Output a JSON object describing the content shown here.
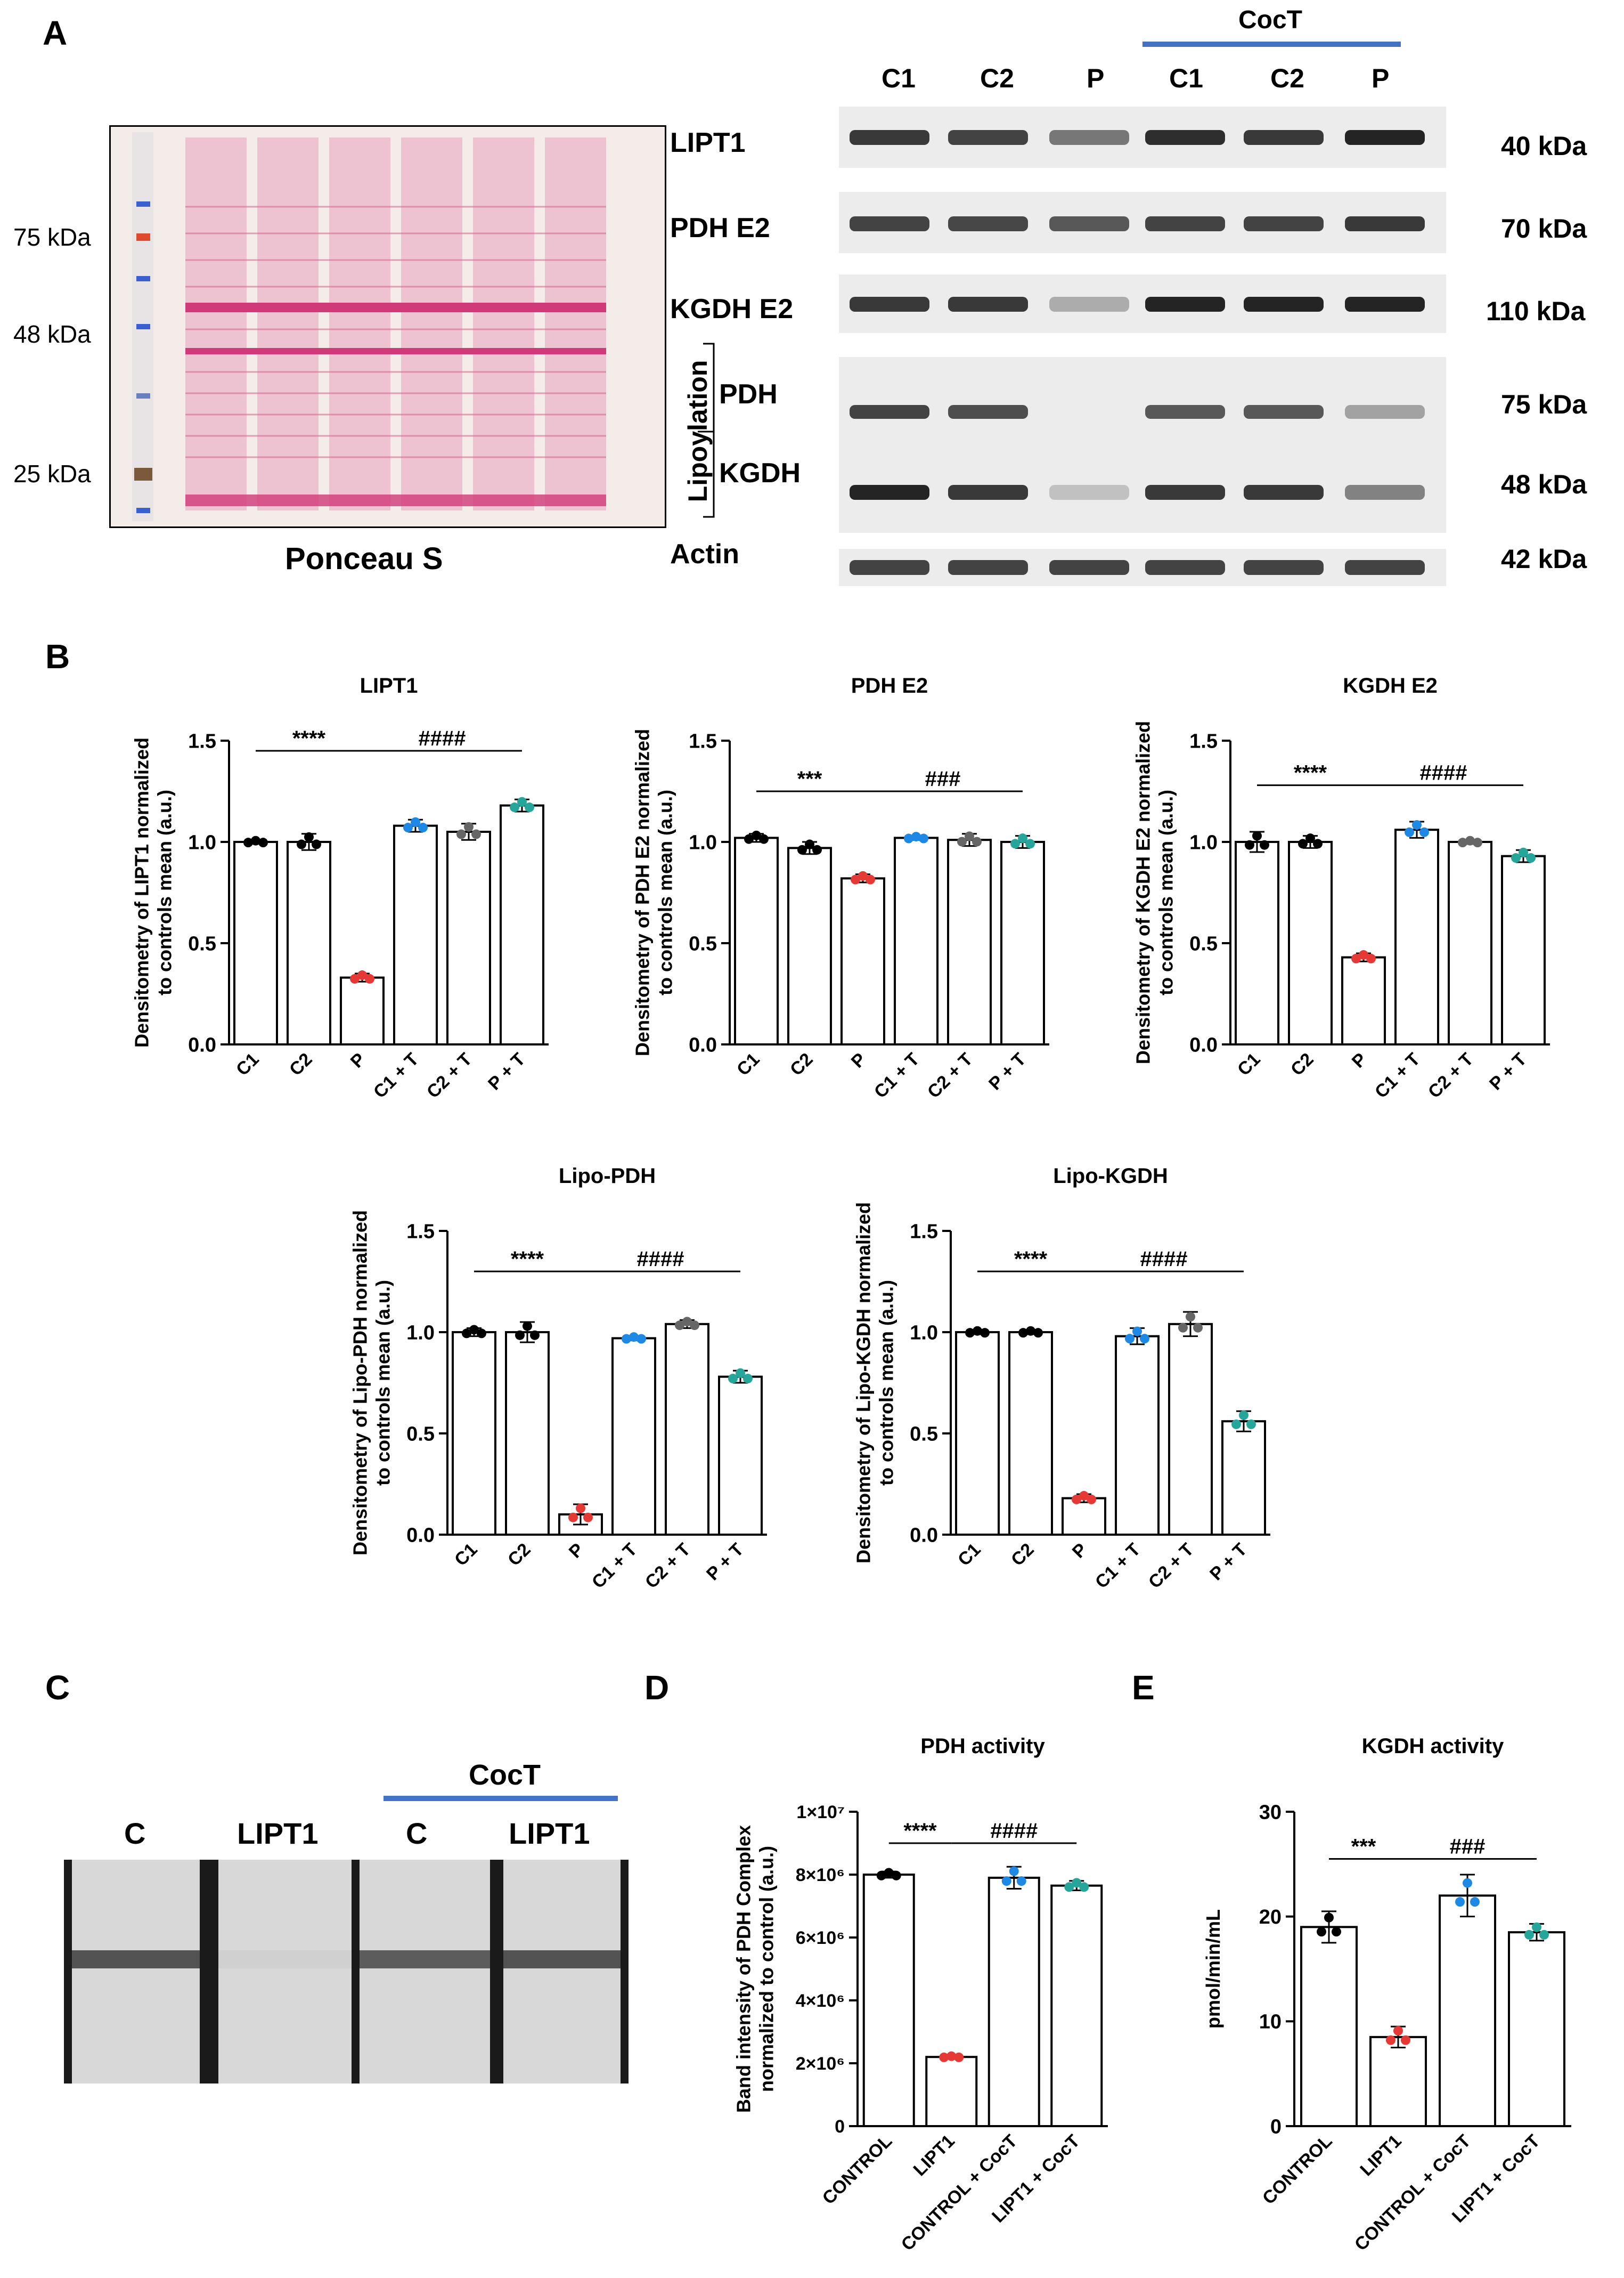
{
  "panelA": {
    "letter": "A",
    "ponceau": {
      "caption": "Ponceau S",
      "markers": [
        "75 kDa",
        "48 kDa",
        "25 kDa"
      ]
    },
    "blot": {
      "treatment_label": "CocT",
      "lanes": [
        "C1",
        "C2",
        "P",
        "C1",
        "C2",
        "P"
      ],
      "rows": [
        {
          "label": "LIPT1",
          "kda": "40 kDa",
          "intensities": [
            0.85,
            0.8,
            0.55,
            0.9,
            0.85,
            0.95
          ]
        },
        {
          "label": "PDH E2",
          "kda": "70 kDa",
          "intensities": [
            0.8,
            0.78,
            0.7,
            0.8,
            0.8,
            0.85
          ]
        },
        {
          "label": "KGDH E2",
          "kda": "110 kDa",
          "intensities": [
            0.85,
            0.85,
            0.3,
            0.95,
            0.95,
            0.95
          ]
        },
        {
          "label": "Actin",
          "kda": "42 kDa",
          "intensities": [
            0.8,
            0.8,
            0.8,
            0.8,
            0.8,
            0.8
          ]
        }
      ],
      "lipoylation": {
        "group_label": "Lipoylation",
        "sub_pdh": "PDH",
        "sub_kgdh": "KGDH",
        "kda_pdh": "75 kDa",
        "kda_kgdh": "48 kDa",
        "pdh_intensities": [
          0.8,
          0.75,
          0.0,
          0.7,
          0.7,
          0.35
        ],
        "kgdh_intensities": [
          0.95,
          0.85,
          0.2,
          0.85,
          0.85,
          0.5
        ]
      }
    }
  },
  "panelB": {
    "letter": "B"
  },
  "panelC": {
    "letter": "C",
    "treatment_label": "CocT",
    "lanes": [
      "C",
      "LIPT1",
      "C",
      "LIPT1"
    ],
    "intensities": [
      0.85,
      0.15,
      0.8,
      0.85
    ]
  },
  "panelD": {
    "letter": "D"
  },
  "panelE": {
    "letter": "E"
  },
  "chart_data": [
    {
      "type": "bar",
      "title": "LIPT1",
      "ylabel": "Densitometry of LIPT1 normalized to controls mean (a.u.)",
      "categories": [
        "C1",
        "C2",
        "P",
        "C1 + T",
        "C2 + T",
        "P + T"
      ],
      "values": [
        1.0,
        1.0,
        0.33,
        1.08,
        1.05,
        1.18
      ],
      "errors": [
        0.01,
        0.04,
        0.02,
        0.03,
        0.04,
        0.03
      ],
      "ylim": [
        0,
        1.5
      ],
      "yticks": [
        "0.0",
        "0.5",
        "1.0",
        "1.5"
      ],
      "sig": [
        {
          "text": "****",
          "from": 0,
          "to": 2,
          "y": 1.45
        },
        {
          "text": "####",
          "from": 2,
          "to": 5,
          "y": 1.45
        }
      ]
    },
    {
      "type": "bar",
      "title": "PDH E2",
      "ylabel": "Densitometry of PDH E2 normalized to controls mean (a.u.)",
      "categories": [
        "C1",
        "C2",
        "P",
        "C1 + T",
        "C2 + T",
        "P + T"
      ],
      "values": [
        1.02,
        0.97,
        0.82,
        1.02,
        1.01,
        1.0
      ],
      "errors": [
        0.02,
        0.03,
        0.02,
        0.01,
        0.03,
        0.03
      ],
      "ylim": [
        0,
        1.5
      ],
      "yticks": [
        "0.0",
        "0.5",
        "1.0",
        "1.5"
      ],
      "sig": [
        {
          "text": "***",
          "from": 0,
          "to": 2,
          "y": 1.25
        },
        {
          "text": "###",
          "from": 2,
          "to": 5,
          "y": 1.25
        }
      ]
    },
    {
      "type": "bar",
      "title": "KGDH E2",
      "ylabel": "Densitometry of KGDH E2 normalized to controls mean (a.u.)",
      "categories": [
        "C1",
        "C2",
        "P",
        "C1 + T",
        "C2 + T",
        "P + T"
      ],
      "values": [
        1.0,
        1.0,
        0.43,
        1.06,
        1.0,
        0.93
      ],
      "errors": [
        0.05,
        0.03,
        0.02,
        0.04,
        0.01,
        0.03
      ],
      "ylim": [
        0,
        1.5
      ],
      "yticks": [
        "0.0",
        "0.5",
        "1.0",
        "1.5"
      ],
      "sig": [
        {
          "text": "****",
          "from": 0,
          "to": 2,
          "y": 1.28
        },
        {
          "text": "####",
          "from": 2,
          "to": 5,
          "y": 1.28
        }
      ]
    },
    {
      "type": "bar",
      "title": "Lipo-PDH",
      "ylabel": "Densitometry of Lipo-PDH normalized to controls mean (a.u.)",
      "categories": [
        "C1",
        "C2",
        "P",
        "C1 + T",
        "C2 + T",
        "P + T"
      ],
      "values": [
        1.0,
        1.0,
        0.1,
        0.97,
        1.04,
        0.78
      ],
      "errors": [
        0.02,
        0.05,
        0.05,
        0.01,
        0.02,
        0.03
      ],
      "ylim": [
        0,
        1.5
      ],
      "yticks": [
        "0.0",
        "0.5",
        "1.0",
        "1.5"
      ],
      "sig": [
        {
          "text": "****",
          "from": 0,
          "to": 2,
          "y": 1.3
        },
        {
          "text": "####",
          "from": 2,
          "to": 5,
          "y": 1.3
        }
      ]
    },
    {
      "type": "bar",
      "title": "Lipo-KGDH",
      "ylabel": "Densitometry of Lipo-KGDH normalized to controls mean (a.u.)",
      "categories": [
        "C1",
        "C2",
        "P",
        "C1 + T",
        "C2 + T",
        "P + T"
      ],
      "values": [
        1.0,
        1.0,
        0.18,
        0.98,
        1.04,
        0.56
      ],
      "errors": [
        0.01,
        0.01,
        0.02,
        0.04,
        0.06,
        0.05
      ],
      "ylim": [
        0,
        1.5
      ],
      "yticks": [
        "0.0",
        "0.5",
        "1.0",
        "1.5"
      ],
      "sig": [
        {
          "text": "****",
          "from": 0,
          "to": 2,
          "y": 1.3
        },
        {
          "text": "####",
          "from": 2,
          "to": 5,
          "y": 1.3
        }
      ]
    },
    {
      "type": "bar",
      "title": "PDH activity",
      "ylabel": "Band intensity of PDH Complex normalized to control (a.u.)",
      "categories": [
        "CONTROL",
        "LIPT1",
        "CONTROL + CocT",
        "LIPT1 + CocT"
      ],
      "values": [
        8000000,
        2200000,
        7900000,
        7650000
      ],
      "errors": [
        100000,
        40000,
        350000,
        150000
      ],
      "ylim": [
        0,
        10000000
      ],
      "yticks": [
        "0",
        "2×10⁶",
        "4×10⁶",
        "6×10⁶",
        "8×10⁶",
        "1×10⁷"
      ],
      "sig": [
        {
          "text": "****",
          "from": 0,
          "to": 1,
          "y": 9000000
        },
        {
          "text": "####",
          "from": 1,
          "to": 3,
          "y": 9000000
        }
      ]
    },
    {
      "type": "bar",
      "title": "KGDH activity",
      "ylabel": "pmol/min/mL",
      "categories": [
        "CONTROL",
        "LIPT1",
        "CONTROL + CocT",
        "LIPT1 + CocT"
      ],
      "values": [
        19,
        8.5,
        22,
        18.5
      ],
      "errors": [
        1.5,
        1.0,
        2.0,
        0.8
      ],
      "ylim": [
        0,
        30
      ],
      "yticks": [
        "0",
        "10",
        "20",
        "30"
      ],
      "sig": [
        {
          "text": "***",
          "from": 0,
          "to": 1,
          "y": 25.5
        },
        {
          "text": "###",
          "from": 1,
          "to": 3,
          "y": 25.5
        }
      ]
    }
  ]
}
